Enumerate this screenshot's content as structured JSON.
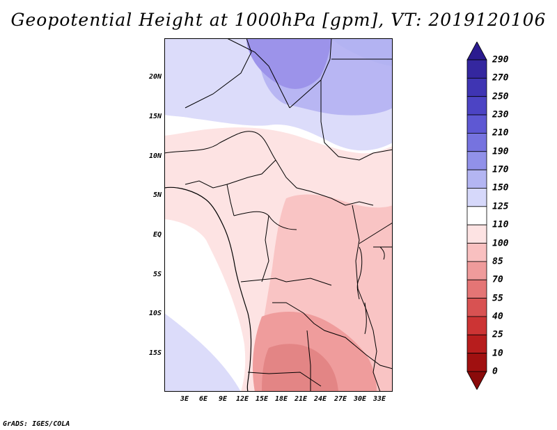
{
  "title": "Geopotential Height at 1000hPa [gpm], VT: 2019120106",
  "credit": "GrADS: IGES/COLA",
  "lat_labels": [
    "20N",
    "15N",
    "10N",
    "5N",
    "EQ",
    "5S",
    "10S",
    "15S"
  ],
  "lon_labels": [
    "3E",
    "6E",
    "9E",
    "12E",
    "15E",
    "18E",
    "21E",
    "24E",
    "27E",
    "30E",
    "33E"
  ],
  "colorbar": {
    "labels": [
      "290",
      "270",
      "250",
      "230",
      "210",
      "190",
      "170",
      "150",
      "125",
      "110",
      "100",
      "85",
      "70",
      "55",
      "40",
      "25",
      "10",
      "0"
    ],
    "colors": [
      "#2b1b8f",
      "#34279f",
      "#3f35b3",
      "#4c44c4",
      "#5e58d3",
      "#7673df",
      "#9191e9",
      "#b3b5f2",
      "#d6d8fa",
      "#ffffff",
      "#fde3e3",
      "#f9c0c0",
      "#ef9b9b",
      "#e47575",
      "#d85252",
      "#cc3434",
      "#b71d1d",
      "#a01010",
      "#8a0a0a"
    ]
  },
  "colors": {
    "very_light_blue": "#dcdcfa",
    "light_blue": "#b3b3f2",
    "mid_blue": "#9c93ea",
    "white": "#ffffff",
    "light_pink": "#fde3e3",
    "pink": "#f9c4c4",
    "salmon": "#ef9c9c",
    "deep_salmon": "#e38585",
    "border": "#000000"
  }
}
